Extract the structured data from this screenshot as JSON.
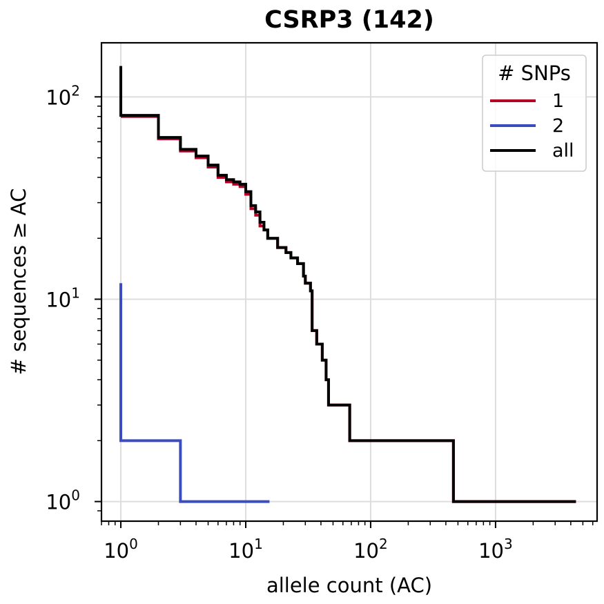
{
  "chart_data": {
    "type": "line",
    "step": true,
    "title": "CSRP3 (142)",
    "xlabel": "allele count (AC)",
    "ylabel": "# sequences ≥ AC",
    "xscale": "log",
    "yscale": "log",
    "xlim": [
      0.7,
      6500
    ],
    "ylim": [
      0.8,
      185
    ],
    "grid": true,
    "legend": {
      "title": "# SNPs",
      "placement": "top-right"
    },
    "x_ticks": [
      {
        "base": "10",
        "exp": "0",
        "value": 1
      },
      {
        "base": "10",
        "exp": "1",
        "value": 10
      },
      {
        "base": "10",
        "exp": "2",
        "value": 100
      },
      {
        "base": "10",
        "exp": "3",
        "value": 1000
      }
    ],
    "y_ticks": [
      {
        "base": "10",
        "exp": "0",
        "value": 1
      },
      {
        "base": "10",
        "exp": "1",
        "value": 10
      },
      {
        "base": "10",
        "exp": "2",
        "value": 100
      }
    ],
    "series": [
      {
        "name": "1",
        "color": "#b40426",
        "points": [
          [
            1,
            80
          ],
          [
            2,
            80
          ],
          [
            2,
            62
          ],
          [
            3,
            62
          ],
          [
            3,
            54
          ],
          [
            4,
            54
          ],
          [
            4,
            50
          ],
          [
            5,
            50
          ],
          [
            5,
            45
          ],
          [
            6,
            45
          ],
          [
            6,
            40
          ],
          [
            7,
            40
          ],
          [
            7,
            38
          ],
          [
            8,
            38
          ],
          [
            8,
            37
          ],
          [
            9,
            37
          ],
          [
            9,
            36
          ],
          [
            10,
            36
          ],
          [
            10,
            33
          ],
          [
            11,
            33
          ],
          [
            11,
            28
          ],
          [
            12,
            28
          ],
          [
            12,
            26
          ],
          [
            13,
            26
          ],
          [
            13,
            23
          ],
          [
            14,
            23
          ],
          [
            14,
            22
          ],
          [
            15,
            22
          ],
          [
            15,
            20
          ],
          [
            18,
            20
          ],
          [
            18,
            18
          ],
          [
            21,
            18
          ],
          [
            21,
            17
          ],
          [
            23,
            17
          ],
          [
            23,
            16
          ],
          [
            26,
            16
          ],
          [
            26,
            15
          ],
          [
            29,
            15
          ],
          [
            29,
            13
          ],
          [
            30,
            13
          ],
          [
            30,
            12
          ],
          [
            33,
            12
          ],
          [
            33,
            11
          ],
          [
            34,
            11
          ],
          [
            34,
            7
          ],
          [
            37,
            7
          ],
          [
            37,
            6
          ],
          [
            41,
            6
          ],
          [
            41,
            5
          ],
          [
            44,
            5
          ],
          [
            44,
            4
          ],
          [
            46,
            4
          ],
          [
            46,
            3
          ],
          [
            68,
            3
          ],
          [
            68,
            2
          ],
          [
            460,
            2
          ],
          [
            460,
            1
          ],
          [
            4400,
            1
          ]
        ]
      },
      {
        "name": "2",
        "color": "#3b4cc0",
        "points": [
          [
            1,
            12
          ],
          [
            1,
            2
          ],
          [
            3,
            2
          ],
          [
            3,
            1
          ],
          [
            15.5,
            1
          ]
        ]
      },
      {
        "name": "all",
        "color": "#000000",
        "points": [
          [
            1,
            142
          ],
          [
            1,
            81
          ],
          [
            2,
            81
          ],
          [
            2,
            63
          ],
          [
            3,
            63
          ],
          [
            3,
            55
          ],
          [
            4,
            55
          ],
          [
            4,
            51
          ],
          [
            5,
            51
          ],
          [
            5,
            46
          ],
          [
            6,
            46
          ],
          [
            6,
            41
          ],
          [
            7,
            41
          ],
          [
            7,
            39
          ],
          [
            8,
            39
          ],
          [
            8,
            38
          ],
          [
            9,
            38
          ],
          [
            9,
            37
          ],
          [
            10,
            37
          ],
          [
            10,
            34
          ],
          [
            11,
            34
          ],
          [
            11,
            29
          ],
          [
            12,
            29
          ],
          [
            12,
            27
          ],
          [
            13,
            27
          ],
          [
            13,
            24
          ],
          [
            14,
            24
          ],
          [
            14,
            22
          ],
          [
            15,
            22
          ],
          [
            15,
            20
          ],
          [
            18,
            20
          ],
          [
            18,
            18
          ],
          [
            21,
            18
          ],
          [
            21,
            17
          ],
          [
            23,
            17
          ],
          [
            23,
            16
          ],
          [
            26,
            16
          ],
          [
            26,
            15
          ],
          [
            29,
            15
          ],
          [
            29,
            13
          ],
          [
            30,
            13
          ],
          [
            30,
            12
          ],
          [
            33,
            12
          ],
          [
            33,
            11
          ],
          [
            34,
            11
          ],
          [
            34,
            7
          ],
          [
            37,
            7
          ],
          [
            37,
            6
          ],
          [
            41,
            6
          ],
          [
            41,
            5
          ],
          [
            44,
            5
          ],
          [
            44,
            4
          ],
          [
            46,
            4
          ],
          [
            46,
            3
          ],
          [
            68,
            3
          ],
          [
            68,
            2
          ],
          [
            460,
            2
          ],
          [
            460,
            1
          ],
          [
            4400,
            1
          ]
        ]
      }
    ]
  }
}
